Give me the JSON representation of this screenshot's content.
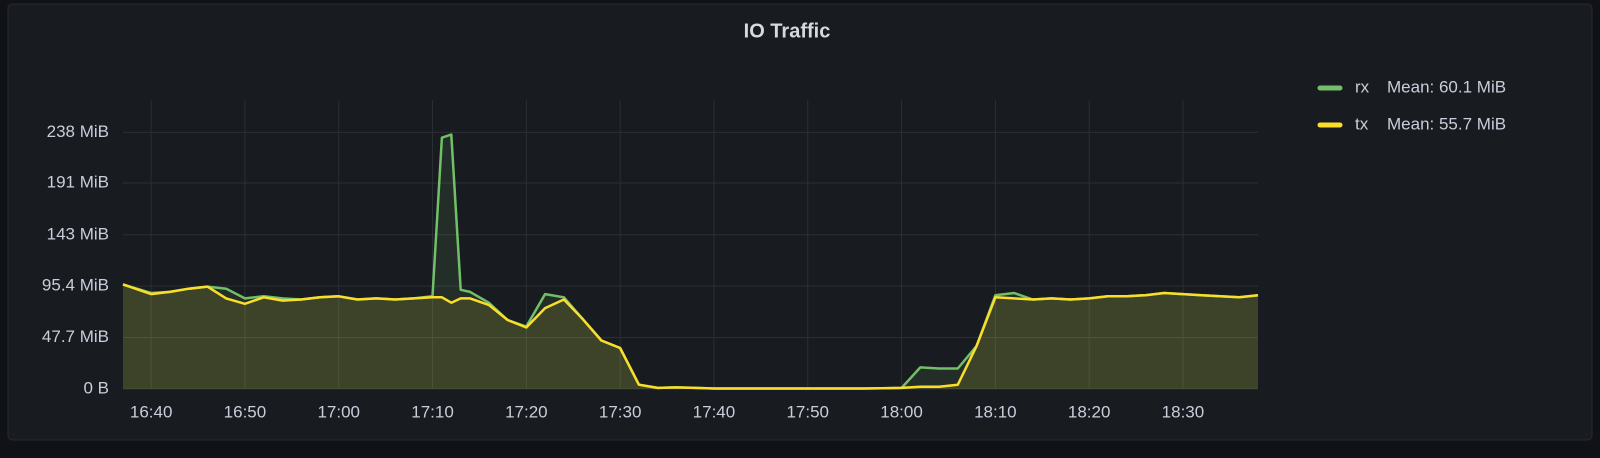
{
  "chart_data": {
    "type": "line",
    "title": "IO Traffic",
    "x": [
      "16:37",
      "16:40",
      "16:42",
      "16:44",
      "16:46",
      "16:48",
      "16:50",
      "16:52",
      "16:54",
      "16:56",
      "16:58",
      "17:00",
      "17:02",
      "17:04",
      "17:06",
      "17:08",
      "17:10",
      "17:11",
      "17:12",
      "17:13",
      "17:14",
      "17:16",
      "17:18",
      "17:20",
      "17:22",
      "17:24",
      "17:26",
      "17:28",
      "17:30",
      "17:32",
      "17:34",
      "17:36",
      "17:38",
      "17:40",
      "17:44",
      "17:48",
      "17:52",
      "17:56",
      "18:00",
      "18:02",
      "18:04",
      "18:06",
      "18:08",
      "18:10",
      "18:12",
      "18:14",
      "18:16",
      "18:18",
      "18:20",
      "18:22",
      "18:24",
      "18:26",
      "18:28",
      "18:30",
      "18:32",
      "18:34",
      "18:36",
      "18:38"
    ],
    "series": [
      {
        "name": "rx",
        "legend_value": "Mean: 60.1 MiB",
        "color": "#73bf69",
        "values": [
          97,
          89,
          90,
          93,
          95,
          93,
          84,
          86,
          84,
          83,
          85,
          86,
          83,
          84,
          83,
          84,
          86,
          233,
          236,
          92,
          90,
          80,
          64,
          58,
          88,
          85,
          65,
          45,
          38,
          4,
          1,
          1.5,
          1,
          0.5,
          0.5,
          0.5,
          0.5,
          0.5,
          1,
          20,
          19,
          19,
          40,
          87,
          89,
          83,
          84,
          83,
          84,
          86,
          86,
          87,
          89,
          88,
          87,
          86,
          85,
          87
        ]
      },
      {
        "name": "tx",
        "legend_value": "Mean: 55.7 MiB",
        "color": "#fade2a",
        "values": [
          97,
          88,
          90,
          93,
          95,
          84,
          79,
          85,
          82,
          83,
          85,
          86,
          83,
          84,
          83,
          84,
          85,
          85,
          80,
          84,
          84,
          78,
          64,
          57,
          75,
          83,
          65,
          45,
          38,
          4,
          1,
          1.5,
          1,
          0.5,
          0.5,
          0.5,
          0.5,
          0.5,
          1,
          2,
          2,
          4,
          40,
          85,
          84,
          83,
          84,
          83,
          84,
          86,
          86,
          87,
          89,
          88,
          87,
          86,
          85,
          87
        ]
      }
    ],
    "xlim": [
      "16:37",
      "18:38"
    ],
    "xticks": [
      "16:40",
      "16:50",
      "17:00",
      "17:10",
      "17:20",
      "17:30",
      "17:40",
      "17:50",
      "18:00",
      "18:10",
      "18:20",
      "18:30"
    ],
    "ylim": [
      0,
      268
    ],
    "yticks": [
      {
        "value": 0,
        "label": "0 B"
      },
      {
        "value": 47.7,
        "label": "47.7 MiB"
      },
      {
        "value": 95.4,
        "label": "95.4 MiB"
      },
      {
        "value": 143,
        "label": "143 MiB"
      },
      {
        "value": 191,
        "label": "191 MiB"
      },
      {
        "value": 238,
        "label": "238 MiB"
      }
    ],
    "grid": true,
    "legend": "right"
  }
}
